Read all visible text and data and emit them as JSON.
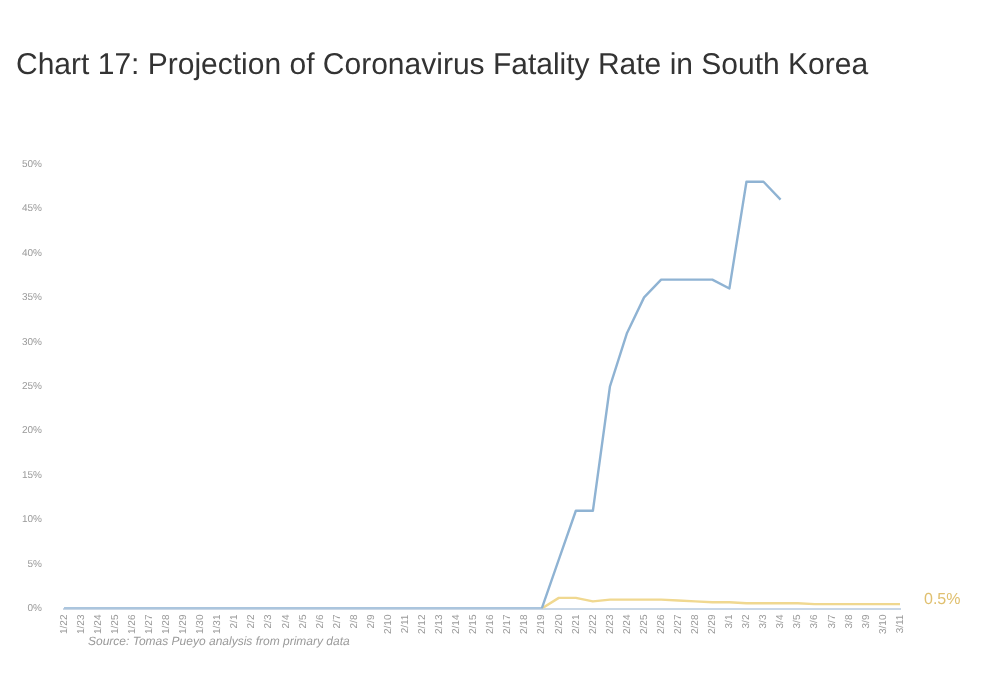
{
  "chart_data": {
    "type": "line",
    "title": "Chart 17: Projection of Coronavirus Fatality Rate in South Korea",
    "categories": [
      "1/22",
      "1/23",
      "1/24",
      "1/25",
      "1/26",
      "1/27",
      "1/28",
      "1/29",
      "1/30",
      "1/31",
      "2/1",
      "2/2",
      "2/3",
      "2/4",
      "2/5",
      "2/6",
      "2/7",
      "2/8",
      "2/9",
      "2/10",
      "2/11",
      "2/12",
      "2/13",
      "2/14",
      "2/15",
      "2/16",
      "2/17",
      "2/18",
      "2/19",
      "2/20",
      "2/21",
      "2/22",
      "2/23",
      "2/24",
      "2/25",
      "2/26",
      "2/27",
      "2/28",
      "2/29",
      "3/1",
      "3/2",
      "3/3",
      "3/4",
      "3/5",
      "3/6",
      "3/7",
      "3/8",
      "3/9",
      "3/10",
      "3/11"
    ],
    "series": [
      {
        "color": "#8fb3d3",
        "values": [
          0,
          0,
          0,
          0,
          0,
          0,
          0,
          0,
          0,
          0,
          0,
          0,
          0,
          0,
          0,
          0,
          0,
          0,
          0,
          0,
          0,
          0,
          0,
          0,
          0,
          0,
          0,
          0,
          0,
          5.5,
          11,
          11,
          25,
          31,
          35,
          37,
          37,
          37,
          37,
          36,
          48,
          48,
          46,
          null,
          null,
          null,
          null,
          null,
          null,
          null
        ]
      },
      {
        "color": "#f0d890",
        "values": [
          null,
          null,
          null,
          null,
          null,
          null,
          null,
          null,
          null,
          null,
          null,
          null,
          null,
          null,
          null,
          null,
          null,
          null,
          null,
          null,
          null,
          null,
          null,
          null,
          null,
          null,
          null,
          null,
          0,
          1.2,
          1.2,
          0.8,
          1,
          1,
          1,
          1,
          0.9,
          0.8,
          0.7,
          0.7,
          0.6,
          0.6,
          0.6,
          0.6,
          0.5,
          0.5,
          0.5,
          0.5,
          0.5,
          0.5
        ]
      }
    ],
    "ylim": [
      0,
      50
    ],
    "yticks": [
      {
        "value": 0,
        "label": "0%"
      },
      {
        "value": 5,
        "label": "5%"
      },
      {
        "value": 10,
        "label": "10%"
      },
      {
        "value": 15,
        "label": "15%"
      },
      {
        "value": 20,
        "label": "20%"
      },
      {
        "value": 25,
        "label": "25%"
      },
      {
        "value": 30,
        "label": "30%"
      },
      {
        "value": 35,
        "label": "35%"
      },
      {
        "value": 40,
        "label": "40%"
      },
      {
        "value": 45,
        "label": "45%"
      },
      {
        "value": 50,
        "label": "50%"
      }
    ],
    "annotations": [
      {
        "text": "0.5%",
        "x": "3/11",
        "y": 0.5
      },
      "Source: Tomas Pueyo analysis from primary data"
    ]
  }
}
